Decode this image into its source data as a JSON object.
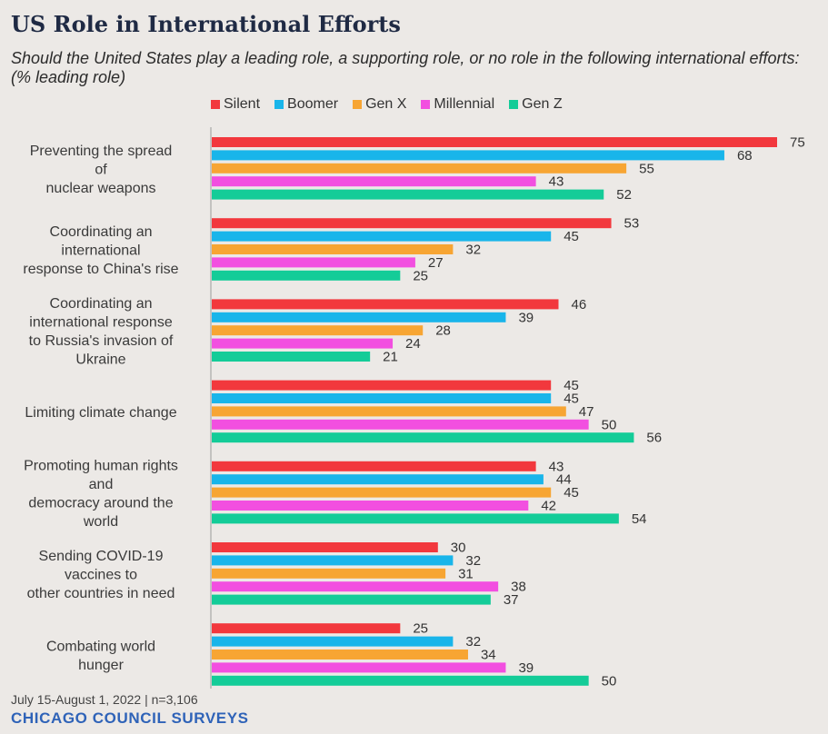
{
  "chart_data": {
    "type": "bar",
    "orientation": "horizontal",
    "title": "US Role in International Efforts",
    "subtitle": "Should the United States play a leading role, a supporting role, or no role in the following international efforts: (% leading role)",
    "categories": [
      [
        "Preventing the spread",
        "of",
        "nuclear weapons"
      ],
      [
        "Coordinating an",
        "international",
        "response to China's rise"
      ],
      [
        "Coordinating an",
        "international response",
        "to Russia's invasion of",
        "Ukraine"
      ],
      [
        "Limiting climate change"
      ],
      [
        "Promoting human rights",
        "and",
        "democracy around the",
        "world"
      ],
      [
        "Sending COVID-19",
        "vaccines to",
        "other countries in need"
      ],
      [
        "Combating world",
        "hunger"
      ]
    ],
    "series": [
      {
        "name": "Silent",
        "color": "#F2383D",
        "values": [
          75,
          53,
          46,
          45,
          43,
          30,
          25
        ]
      },
      {
        "name": "Boomer",
        "color": "#19B5EA",
        "values": [
          68,
          45,
          39,
          45,
          44,
          32,
          32
        ]
      },
      {
        "name": "Gen X",
        "color": "#F7A533",
        "values": [
          55,
          32,
          28,
          47,
          45,
          31,
          34
        ]
      },
      {
        "name": "Millennial",
        "color": "#F24FE0",
        "values": [
          43,
          27,
          24,
          50,
          42,
          38,
          39
        ]
      },
      {
        "name": "Gen Z",
        "color": "#14CC98",
        "values": [
          52,
          25,
          21,
          56,
          54,
          37,
          50
        ]
      }
    ],
    "xlim": [
      0,
      75
    ],
    "grid": false,
    "legend": "top"
  },
  "footer": {
    "note": "July 15-August 1, 2022 | n=3,106",
    "brand": "CHICAGO COUNCIL SURVEYS"
  }
}
